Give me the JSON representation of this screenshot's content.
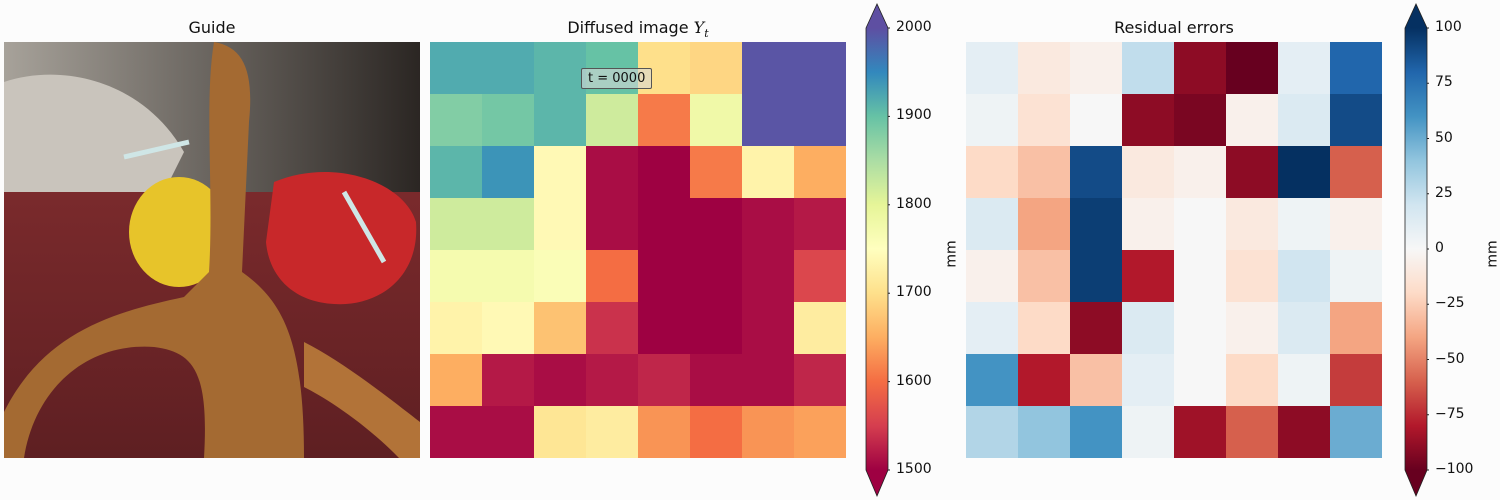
{
  "titles": {
    "guide": "Guide",
    "diffused_prefix": "Diffused image ",
    "diffused_var": "Y",
    "diffused_sub": "t",
    "residual": "Residual errors"
  },
  "time_label": "t = 0000",
  "colormaps": {
    "spectral": [
      "#9e0142",
      "#d53e4f",
      "#f46d43",
      "#fdae61",
      "#fee08b",
      "#ffffbf",
      "#e6f598",
      "#abdda4",
      "#66c2a5",
      "#3288bd",
      "#5e4fa2"
    ],
    "rdbu": [
      "#67001f",
      "#b2182b",
      "#d6604d",
      "#f4a582",
      "#fddbc7",
      "#f7f7f7",
      "#d1e5f0",
      "#92c5de",
      "#4393c3",
      "#2166ac",
      "#053061"
    ]
  },
  "chart_data": [
    {
      "type": "heatmap",
      "name": "diffused",
      "unit": "mm",
      "vmin": 1500,
      "vmax": 2000,
      "ticks": [
        "2000",
        "1900",
        "1800",
        "1700",
        "1600",
        "1500"
      ],
      "grid": [
        [
          1920,
          1920,
          1910,
          1900,
          1700,
          1690,
          1995,
          1995
        ],
        [
          1880,
          1890,
          1910,
          1820,
          1610,
          1780,
          1995,
          1995
        ],
        [
          1910,
          1940,
          1740,
          1510,
          1500,
          1610,
          1730,
          1650
        ],
        [
          1820,
          1820,
          1740,
          1510,
          1500,
          1500,
          1510,
          1520
        ],
        [
          1770,
          1770,
          1760,
          1600,
          1500,
          1500,
          1510,
          1560
        ],
        [
          1730,
          1740,
          1670,
          1540,
          1500,
          1500,
          1510,
          1720
        ],
        [
          1650,
          1520,
          1510,
          1520,
          1530,
          1510,
          1510,
          1530
        ],
        [
          1510,
          1510,
          1710,
          1720,
          1630,
          1600,
          1630,
          1640
        ]
      ]
    },
    {
      "type": "heatmap",
      "name": "residual",
      "unit": "mm",
      "vmin": -100,
      "vmax": 100,
      "ticks": [
        "100",
        "75",
        "50",
        "25",
        "0",
        "−25",
        "−50",
        "−75",
        "−100"
      ],
      "grid": [
        [
          10,
          -10,
          -5,
          25,
          -90,
          -100,
          10,
          80
        ],
        [
          5,
          -15,
          0,
          -90,
          -95,
          -5,
          15,
          90
        ],
        [
          -20,
          -30,
          90,
          -10,
          -5,
          -90,
          100,
          -60
        ],
        [
          15,
          -40,
          95,
          -5,
          0,
          -10,
          5,
          -5
        ],
        [
          -5,
          -30,
          95,
          -80,
          0,
          -15,
          20,
          5
        ],
        [
          10,
          -20,
          -90,
          15,
          0,
          -5,
          15,
          -40
        ],
        [
          60,
          -80,
          -30,
          10,
          0,
          -20,
          5,
          -70
        ],
        [
          30,
          40,
          60,
          5,
          -85,
          -60,
          -90,
          50
        ]
      ]
    }
  ]
}
